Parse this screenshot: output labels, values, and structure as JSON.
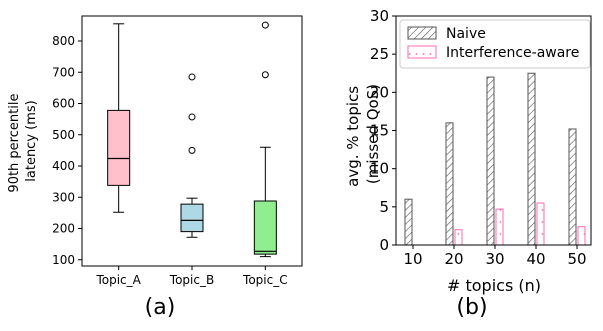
{
  "chart_data": [
    {
      "type": "box",
      "panel_label": "(a)",
      "ylabel_lines": [
        "90th percentile",
        "latency (ms)"
      ],
      "ylim": [
        80,
        880
      ],
      "yticks": [
        100,
        200,
        300,
        400,
        500,
        600,
        700,
        800
      ],
      "categories": [
        "Topic_A",
        "Topic_B",
        "Topic_C"
      ],
      "boxes": [
        {
          "name": "Topic_A",
          "whisker_low": 252,
          "q1": 338,
          "median": 424,
          "q3": 578,
          "whisker_high": 855,
          "outliers": [],
          "color": "#ffc0cb"
        },
        {
          "name": "Topic_B",
          "whisker_low": 172,
          "q1": 190,
          "median": 226,
          "q3": 278,
          "whisker_high": 297,
          "outliers": [
            450,
            557,
            685
          ],
          "color": "#add8e6"
        },
        {
          "name": "Topic_C",
          "whisker_low": 110,
          "q1": 118,
          "median": 127,
          "q3": 288,
          "whisker_high": 460,
          "outliers": [
            692,
            851
          ],
          "color": "#90ee90"
        }
      ]
    },
    {
      "type": "bar",
      "panel_label": "(b)",
      "xlabel": "# topics (n)",
      "ylabel_lines": [
        "avg. % topics",
        "(missed QoS)"
      ],
      "ylim": [
        0,
        30
      ],
      "yticks": [
        0,
        5,
        10,
        15,
        20,
        25,
        30
      ],
      "categories": [
        "10",
        "20",
        "30",
        "40",
        "50"
      ],
      "series": [
        {
          "name": "Naive",
          "values": [
            6,
            16,
            22,
            22.5,
            15.2
          ],
          "color": "#555555"
        },
        {
          "name": "Interference-aware",
          "values": [
            0,
            2,
            4.7,
            5.5,
            2.4
          ],
          "color": "#ff69b4"
        }
      ],
      "legend": "top"
    }
  ]
}
